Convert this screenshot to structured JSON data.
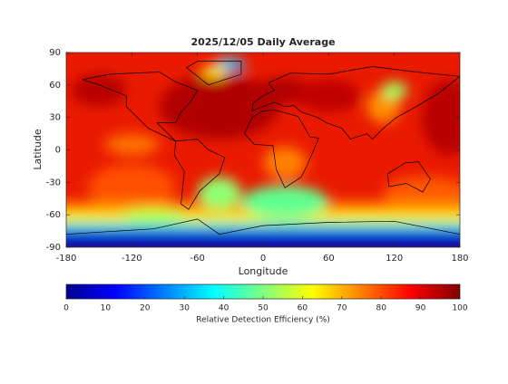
{
  "chart_data": {
    "type": "map",
    "title": "2025/12/05 Daily Average",
    "x_label": "Longitude",
    "y_label": "Latitude",
    "xlim": [
      -180,
      180
    ],
    "xticks": [
      -180,
      -120,
      -60,
      0,
      60,
      120,
      180
    ],
    "ylim": [
      -90,
      90
    ],
    "yticks": [
      -90,
      -60,
      -30,
      0,
      30,
      60,
      90
    ],
    "colormap": "jet",
    "colorbar_label": "Relative Detection Efficiency (%)",
    "colorbar_lim": [
      0,
      100
    ],
    "colorbar_ticks": [
      0,
      10,
      20,
      30,
      40,
      50,
      60,
      70,
      80,
      90,
      100
    ]
  }
}
